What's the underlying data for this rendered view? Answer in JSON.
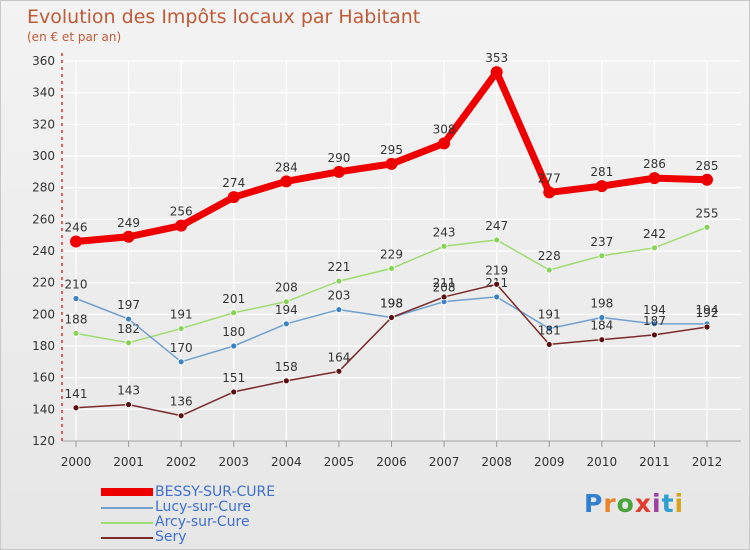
{
  "chart_data": {
    "type": "line",
    "title": "Evolution des Impôts locaux par Habitant",
    "subtitle": "(en € et par an)",
    "xlabel": "",
    "ylabel": "",
    "x": [
      "2000",
      "2001",
      "2002",
      "2003",
      "2004",
      "2005",
      "2006",
      "2007",
      "2008",
      "2009",
      "2010",
      "2011",
      "2012"
    ],
    "ylim": [
      120,
      360
    ],
    "yticks": [
      120,
      140,
      160,
      180,
      200,
      220,
      240,
      260,
      280,
      300,
      320,
      340,
      360
    ],
    "grid": true,
    "legend_position": "bottom-left",
    "series": [
      {
        "name": "BESSY-SUR-CURE",
        "color": "#ee0000",
        "marker": "#ee0000",
        "width": 7,
        "values": [
          246,
          249,
          256,
          274,
          284,
          290,
          295,
          308,
          353,
          277,
          281,
          286,
          285
        ]
      },
      {
        "name": "Lucy-sur-Cure",
        "color": "#6fa0cf",
        "marker": "#3a82c4",
        "width": 1.5,
        "values": [
          210,
          197,
          170,
          180,
          194,
          203,
          198,
          208,
          211,
          191,
          198,
          194,
          194
        ]
      },
      {
        "name": "Arcy-sur-Cure",
        "color": "#9edc70",
        "marker": "#86d356",
        "width": 1.5,
        "values": [
          188,
          182,
          191,
          201,
          208,
          221,
          229,
          243,
          247,
          228,
          237,
          242,
          255
        ]
      },
      {
        "name": "Sery",
        "color": "#7a2a2a",
        "marker": "#5a1010",
        "width": 1.5,
        "values": [
          141,
          143,
          136,
          151,
          158,
          164,
          198,
          211,
          219,
          181,
          184,
          187,
          192
        ]
      }
    ]
  },
  "branding": {
    "logo_letters": [
      "P",
      "r",
      "o",
      "x",
      "i",
      "t",
      "i"
    ]
  }
}
